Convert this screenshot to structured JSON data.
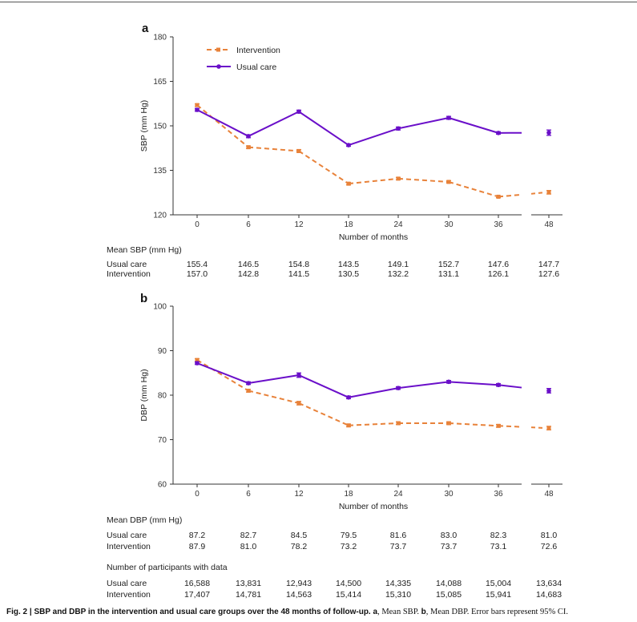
{
  "caption": {
    "label": "Fig. 2 | ",
    "bold_text": "SBP and DBP in the intervention and usual care groups over the 48  months of follow-up. ",
    "a_letter": "a",
    "a_text": ", Mean SBP. ",
    "b_letter": "b",
    "b_text": ", Mean DBP. Error bars represent 95% CI."
  },
  "colors": {
    "intervention": "#e8823a",
    "usual_care": "#6a0fc9"
  },
  "legend": {
    "intervention": "Intervention",
    "usual_care": "Usual care"
  },
  "panel_a": {
    "letter": "a",
    "ylabel": "SBP (mm Hg)",
    "xlabel": "Number of months",
    "table_title": "Mean SBP (mm Hg)",
    "row_labels": [
      "Usual care",
      "Intervention"
    ],
    "rows": [
      [
        "155.4",
        "146.5",
        "154.8",
        "143.5",
        "149.1",
        "152.7",
        "147.6",
        "147.7"
      ],
      [
        "157.0",
        "142.8",
        "141.5",
        "130.5",
        "132.2",
        "131.1",
        "126.1",
        "127.6"
      ]
    ]
  },
  "panel_b": {
    "letter": "b",
    "ylabel": "DBP (mm Hg)",
    "xlabel": "Number of months",
    "table_title": "Mean DBP (mm Hg)",
    "row_labels": [
      "Usual care",
      "Intervention"
    ],
    "rows": [
      [
        "87.2",
        "82.7",
        "84.5",
        "79.5",
        "81.6",
        "83.0",
        "82.3",
        "81.0"
      ],
      [
        "87.9",
        "81.0",
        "78.2",
        "73.2",
        "73.7",
        "73.7",
        "73.1",
        "72.6"
      ]
    ]
  },
  "participants": {
    "title": "Number of participants with data",
    "row_labels": [
      "Usual care",
      "Intervention"
    ],
    "rows": [
      [
        "16,588",
        "13,831",
        "12,943",
        "14,500",
        "14,335",
        "14,088",
        "15,004",
        "13,634"
      ],
      [
        "17,407",
        "14,781",
        "14,563",
        "15,414",
        "15,310",
        "15,085",
        "15,941",
        "14,683"
      ]
    ]
  },
  "chart_data": [
    {
      "type": "line",
      "panel": "a",
      "x": [
        0,
        6,
        12,
        18,
        24,
        30,
        36,
        48
      ],
      "x_tick_labels": [
        "0",
        "6",
        "12",
        "18",
        "24",
        "30",
        "36",
        "48"
      ],
      "xlabel": "Number of months",
      "ylabel": "SBP (mm Hg)",
      "ylim": [
        120,
        180
      ],
      "y_ticks": [
        120,
        135,
        150,
        165,
        180
      ],
      "x_axis_break": "between 36 and 48",
      "grid": false,
      "legend_position": "top-left",
      "series": [
        {
          "name": "Intervention",
          "style": "dashed",
          "values": [
            157.0,
            142.8,
            141.5,
            130.5,
            132.2,
            131.1,
            126.1,
            127.6
          ],
          "ci_halfwidth": [
            0.4,
            0.4,
            0.5,
            0.4,
            0.4,
            0.4,
            0.3,
            0.6
          ]
        },
        {
          "name": "Usual care",
          "style": "solid",
          "values": [
            155.4,
            146.5,
            154.8,
            143.5,
            149.1,
            152.7,
            147.6,
            147.7
          ],
          "ci_halfwidth": [
            0.5,
            0.5,
            0.5,
            0.4,
            0.5,
            0.5,
            0.4,
            0.9
          ]
        }
      ]
    },
    {
      "type": "line",
      "panel": "b",
      "x": [
        0,
        6,
        12,
        18,
        24,
        30,
        36,
        48
      ],
      "x_tick_labels": [
        "0",
        "6",
        "12",
        "18",
        "24",
        "30",
        "36",
        "48"
      ],
      "xlabel": "Number of months",
      "ylabel": "DBP (mm Hg)",
      "ylim": [
        60,
        100
      ],
      "y_ticks": [
        60,
        70,
        80,
        90,
        100
      ],
      "x_axis_break": "between 36 and 48",
      "grid": false,
      "series": [
        {
          "name": "Intervention",
          "style": "dashed",
          "values": [
            87.9,
            81.0,
            78.2,
            73.2,
            73.7,
            73.7,
            73.1,
            72.6
          ],
          "ci_halfwidth": [
            0.3,
            0.3,
            0.4,
            0.3,
            0.3,
            0.3,
            0.3,
            0.4
          ]
        },
        {
          "name": "Usual care",
          "style": "solid",
          "values": [
            87.2,
            82.7,
            84.5,
            79.5,
            81.6,
            83.0,
            82.3,
            81.0
          ],
          "ci_halfwidth": [
            0.3,
            0.3,
            0.5,
            0.3,
            0.3,
            0.3,
            0.3,
            0.5
          ]
        }
      ]
    }
  ]
}
